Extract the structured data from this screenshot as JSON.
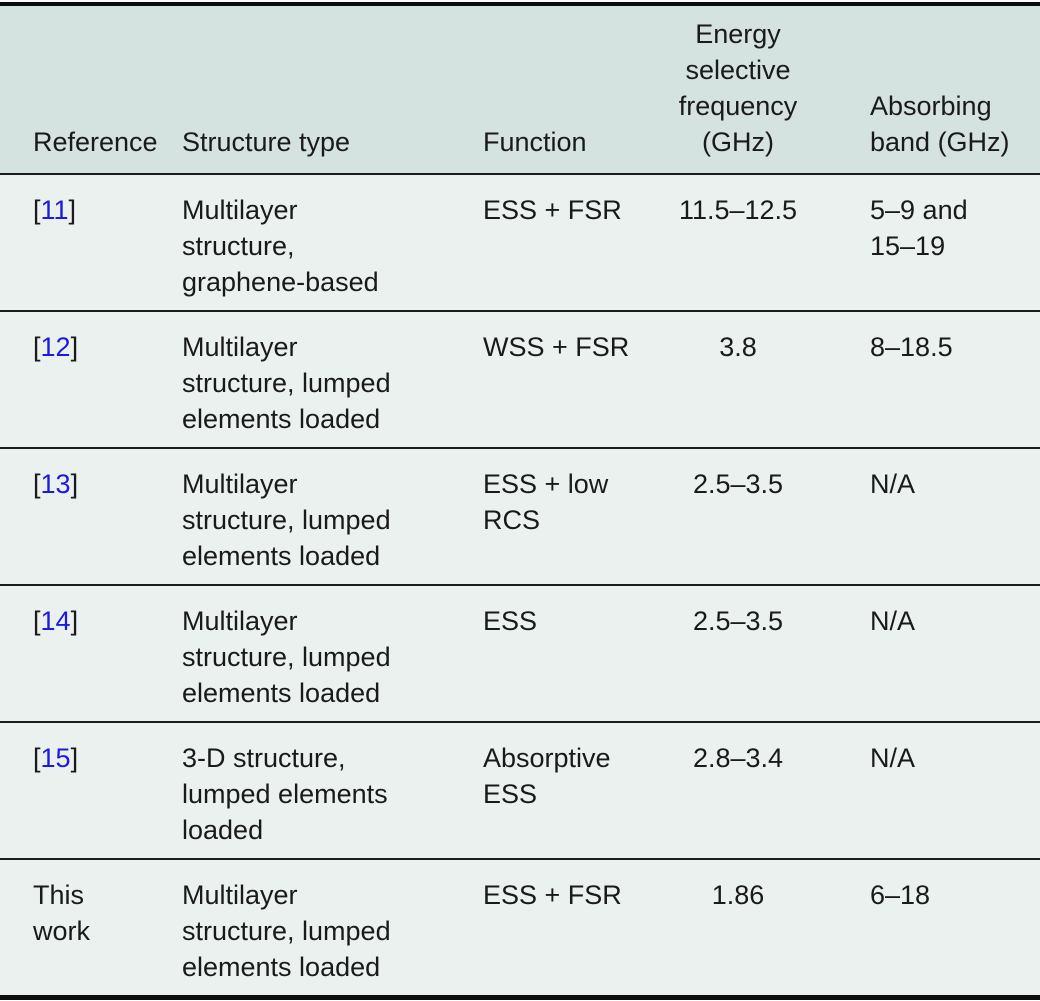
{
  "colors": {
    "header_bg": "#d4e2e0",
    "body_bg": "#eaf1ef",
    "rule": "#1c1c1c",
    "text": "#1a1a1a",
    "link_blue": "#1c1ae0"
  },
  "chart_data": {
    "type": "table",
    "title": "",
    "columns": [
      "Reference",
      "Structure type",
      "Function",
      "Energy selective frequency (GHz)",
      "Absorbing band (GHz)"
    ],
    "rows": [
      [
        "[11]",
        "Multilayer structure, graphene-based",
        "ESS + FSR",
        "11.5–12.5",
        "5–9 and 15–19"
      ],
      [
        "[12]",
        "Multilayer structure, lumped elements loaded",
        "WSS + FSR",
        "3.8",
        "8–18.5"
      ],
      [
        "[13]",
        "Multilayer structure, lumped elements loaded",
        "ESS + low RCS",
        "2.5–3.5",
        "N/A"
      ],
      [
        "[14]",
        "Multilayer structure, lumped elements loaded",
        "ESS",
        "2.5–3.5",
        "N/A"
      ],
      [
        "[15]",
        "3-D structure, lumped elements loaded",
        "Absorptive ESS",
        "2.8–3.4",
        "N/A"
      ],
      [
        "This work",
        "Multilayer structure, lumped elements loaded",
        "ESS + FSR",
        "1.86",
        "6–18"
      ]
    ]
  },
  "header": {
    "reference": "Reference",
    "structure": "Structure type",
    "function": "Function",
    "frequency": "Energy selective frequency (GHz)",
    "absorbing": "Absorbing band (GHz)"
  },
  "rows": [
    {
      "ref_open": "[",
      "ref_num": "11",
      "ref_close": "]",
      "ref_plain": "",
      "structure": "Multilayer structure, graphene-based",
      "function": "ESS + FSR",
      "frequency": "11.5–12.5",
      "absorbing": "5–9 and 15–19"
    },
    {
      "ref_open": "[",
      "ref_num": "12",
      "ref_close": "]",
      "ref_plain": "",
      "structure": "Multilayer structure, lumped elements loaded",
      "function": "WSS + FSR",
      "frequency": "3.8",
      "absorbing": "8–18.5"
    },
    {
      "ref_open": "[",
      "ref_num": "13",
      "ref_close": "]",
      "ref_plain": "",
      "structure": "Multilayer structure, lumped elements loaded",
      "function": "ESS + low RCS",
      "frequency": "2.5–3.5",
      "absorbing": "N/A"
    },
    {
      "ref_open": "[",
      "ref_num": "14",
      "ref_close": "]",
      "ref_plain": "",
      "structure": "Multilayer structure, lumped elements loaded",
      "function": "ESS",
      "frequency": "2.5–3.5",
      "absorbing": "N/A"
    },
    {
      "ref_open": "[",
      "ref_num": "15",
      "ref_close": "]",
      "ref_plain": "",
      "structure": "3-D structure, lumped elements loaded",
      "function": "Absorptive ESS",
      "frequency": "2.8–3.4",
      "absorbing": "N/A"
    },
    {
      "ref_open": "",
      "ref_num": "",
      "ref_close": "",
      "ref_plain": "This work",
      "structure": "Multilayer structure, lumped elements loaded",
      "function": "ESS + FSR",
      "frequency": "1.86",
      "absorbing": "6–18"
    }
  ]
}
